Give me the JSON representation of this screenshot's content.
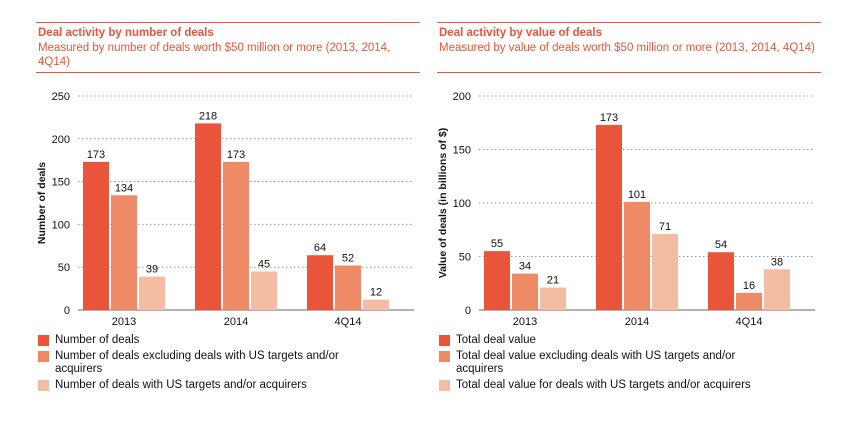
{
  "colors": {
    "accent": "#e8553a",
    "series": [
      "#e8553a",
      "#ef8a66",
      "#f5bca4"
    ]
  },
  "chart_data": [
    {
      "type": "bar",
      "title": "Deal activity by number of deals",
      "subtitle": "Measured by number of deals worth $50 million or more (2013, 2014, 4Q14)",
      "xlabel": "",
      "ylabel": "Number of deals",
      "ylim": [
        0,
        250
      ],
      "yticks": [
        0,
        50,
        100,
        150,
        200,
        250
      ],
      "grid": true,
      "legend_position": "bottom",
      "categories": [
        "2013",
        "2014",
        "4Q14"
      ],
      "series": [
        {
          "name": "Number of deals",
          "values": [
            173,
            218,
            64
          ]
        },
        {
          "name": "Number of deals excluding deals with US targets and/or acquirers",
          "values": [
            134,
            173,
            52
          ]
        },
        {
          "name": "Number of deals with US targets and/or acquirers",
          "values": [
            39,
            45,
            12
          ]
        }
      ]
    },
    {
      "type": "bar",
      "title": "Deal activity by value of deals",
      "subtitle": "Measured by value of deals worth $50 million or more (2013, 2014, 4Q14)",
      "xlabel": "",
      "ylabel": "Value of deals (in billions of $)",
      "ylim": [
        0,
        200
      ],
      "yticks": [
        0,
        50,
        100,
        150,
        200
      ],
      "grid": true,
      "legend_position": "bottom",
      "categories": [
        "2013",
        "2014",
        "4Q14"
      ],
      "series": [
        {
          "name": "Total deal value",
          "values": [
            55,
            173,
            54
          ]
        },
        {
          "name": "Total deal value excluding deals with US targets and/or acquirers",
          "values": [
            34,
            101,
            16
          ]
        },
        {
          "name": "Total deal value for deals with US targets and/or acquirers",
          "values": [
            21,
            71,
            38
          ]
        }
      ]
    }
  ]
}
